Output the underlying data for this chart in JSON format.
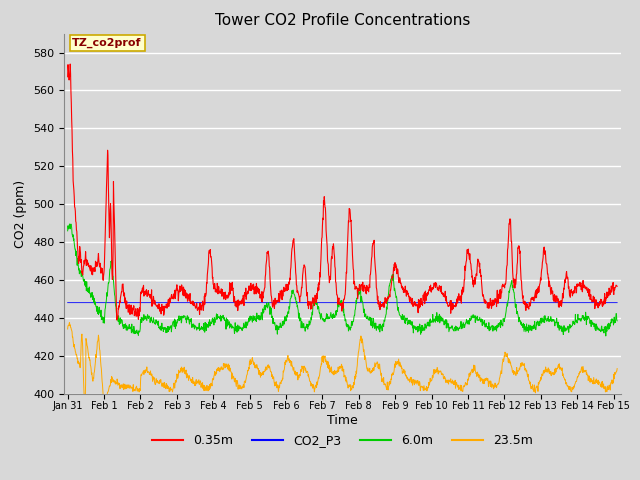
{
  "title": "Tower CO2 Profile Concentrations",
  "xlabel": "Time",
  "ylabel": "CO2 (ppm)",
  "ylim": [
    400,
    590
  ],
  "yticks": [
    400,
    420,
    440,
    460,
    480,
    500,
    520,
    540,
    560,
    580
  ],
  "annotation_text": "TZ_co2prof",
  "annotation_bg": "#ffffcc",
  "annotation_border": "#ccaa00",
  "series_colors": {
    "0.35m": "#ff0000",
    "CO2_P3": "#0000ff",
    "6.0m": "#00cc00",
    "23.5m": "#ffaa00"
  },
  "background_color": "#d8d8d8",
  "grid_color": "#ffffff",
  "x_tick_labels": [
    "Jan 31",
    "Feb 1",
    "Feb 2",
    "Feb 3",
    "Feb 4",
    "Feb 5",
    "Feb 6",
    "Feb 7",
    "Feb 8",
    "Feb 9",
    "Feb 10",
    "Feb 11",
    "Feb 12",
    "Feb 13",
    "Feb 14",
    "Feb 15"
  ],
  "x_tick_positions": [
    0.0,
    1.0,
    2.0,
    3.0,
    4.0,
    5.0,
    6.0,
    7.0,
    8.0,
    9.0,
    10.0,
    11.0,
    12.0,
    13.0,
    14.0,
    15.0
  ],
  "xlim": [
    -0.1,
    15.2
  ],
  "figsize": [
    6.4,
    4.8
  ],
  "dpi": 100
}
